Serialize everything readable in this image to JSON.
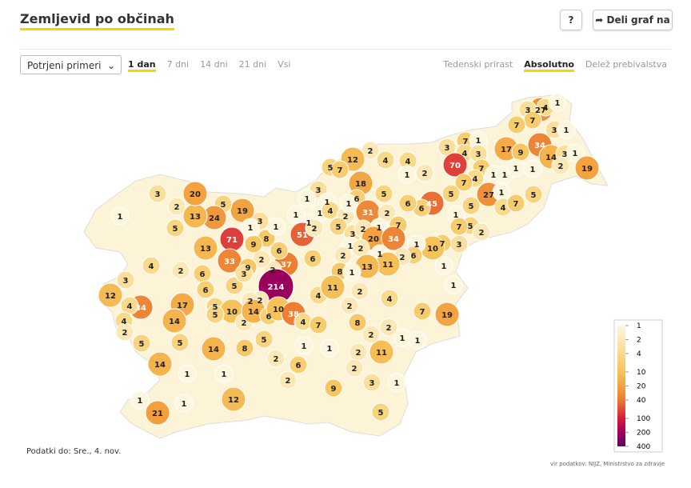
{
  "header": {
    "title": "Zemljevid po občinah",
    "help": "?",
    "share": "Deli graf na"
  },
  "controls": {
    "select": "Potrjeni primeri",
    "periods": [
      "1 dan",
      "7 dni",
      "14 dni",
      "21 dni",
      "Vsi"
    ],
    "active_period": 0,
    "modes": [
      "Tedenski prirast",
      "Absolutno",
      "Delež prebivalstva"
    ],
    "active_mode": 1
  },
  "map": {
    "values": [
      27,
      3,
      4,
      1,
      7,
      7,
      3,
      1,
      7,
      1,
      4,
      3,
      17,
      9,
      34,
      14,
      3,
      1,
      2,
      19,
      3,
      70,
      7,
      1,
      1,
      1,
      4,
      7,
      27,
      1,
      1,
      5,
      45,
      6,
      6,
      5,
      1,
      4,
      7,
      5,
      5,
      7,
      2,
      3,
      7,
      10,
      1,
      6,
      1,
      1,
      7,
      19,
      2,
      12,
      4,
      4,
      1,
      2,
      5,
      7,
      18,
      5,
      3,
      1,
      1,
      1,
      1,
      1,
      51,
      2,
      4,
      2,
      5,
      3,
      6,
      1,
      31,
      2,
      7,
      1,
      2,
      20,
      34,
      1,
      2,
      2,
      1,
      2,
      11,
      13,
      8,
      1,
      6,
      37,
      2,
      2,
      6,
      8,
      9,
      1,
      3,
      19,
      5,
      24,
      13,
      20,
      2,
      3,
      1,
      5,
      71,
      1,
      13,
      33,
      9,
      6,
      2,
      4,
      3,
      12,
      34,
      17,
      6,
      5,
      5,
      3,
      214,
      2,
      2,
      10,
      2,
      14,
      6,
      10,
      38,
      4,
      4,
      11,
      2,
      2,
      4,
      8,
      7,
      4,
      4,
      2,
      5,
      14,
      5,
      5,
      14,
      8,
      14,
      1,
      1,
      5,
      2,
      6,
      1,
      1,
      2,
      11,
      2,
      1,
      1,
      2,
      2,
      2,
      9,
      3,
      1,
      12,
      1,
      21,
      1,
      5
    ],
    "legend": {
      "ticks": [
        1,
        2,
        4,
        10,
        20,
        40,
        100,
        200,
        400
      ],
      "colors": [
        "#fdf6de",
        "#fbe8b6",
        "#f9d98a",
        "#f6c35a",
        "#f3a23f",
        "#ec7b32",
        "#d71b3f",
        "#a1005a",
        "#5c0062"
      ]
    }
  },
  "footer": {
    "date": "Podatki do: Sre., 4. nov.",
    "source": "vir podatkov: NIJZ, Ministrstvo za zdravje"
  }
}
